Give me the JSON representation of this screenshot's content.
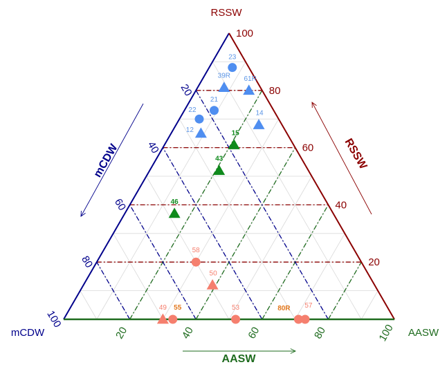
{
  "colors": {
    "rssw": "#8b0000",
    "mcdw": "#00008b",
    "aasw": "#1e6b1e",
    "blue_marker": "#4f8ef0",
    "blue_label": "#5b95e6",
    "green_marker": "#0f8a1c",
    "green_label": "#0f8a1c",
    "salmon_marker": "#f57f6e",
    "salmon_label": "#f57f6e",
    "salmon_label_bold": "#e2761b",
    "grid": "#d9d9d9"
  },
  "chart_data": {
    "type": "scatter",
    "subtype": "ternary",
    "corners": {
      "top": "RSSW",
      "left": "mCDW",
      "right": "AASW"
    },
    "axes": {
      "rssw": {
        "title": "RSSW",
        "ticks": [
          "20",
          "40",
          "60",
          "80",
          "100"
        ]
      },
      "mcdw": {
        "title": "mCDW",
        "ticks": [
          "20",
          "40",
          "60",
          "80",
          "100"
        ]
      },
      "aasw": {
        "title": "AASW",
        "ticks": [
          "20",
          "40",
          "60",
          "80",
          "100"
        ]
      }
    },
    "range": [
      0,
      100
    ],
    "grid": true,
    "reference_lines": {
      "rssw": [
        20,
        40,
        60,
        80
      ],
      "mcdw": [
        20,
        40,
        60,
        80
      ],
      "aasw": [
        20,
        40,
        60,
        80
      ]
    },
    "points": [
      {
        "label": "23",
        "shape": "circle",
        "group": "blue",
        "rssw": 88,
        "aasw": 7,
        "mcdw": 5
      },
      {
        "label": "39R",
        "shape": "triangle",
        "group": "blue",
        "rssw": 81,
        "aasw": 8,
        "mcdw": 11
      },
      {
        "label": "61R",
        "shape": "triangle",
        "group": "blue",
        "rssw": 80,
        "aasw": 16,
        "mcdw": 4
      },
      {
        "label": "21",
        "shape": "circle",
        "group": "blue",
        "rssw": 73,
        "aasw": 9,
        "mcdw": 18
      },
      {
        "label": "22",
        "shape": "circle",
        "group": "blue",
        "rssw": 70,
        "aasw": 6,
        "mcdw": 24
      },
      {
        "label": "14",
        "shape": "triangle",
        "group": "blue",
        "rssw": 68,
        "aasw": 25,
        "mcdw": 7
      },
      {
        "label": "12",
        "shape": "triangle",
        "group": "blue",
        "rssw": 65,
        "aasw": 9,
        "mcdw": 26
      },
      {
        "label": "15",
        "shape": "triangle",
        "group": "green",
        "rssw": 61,
        "aasw": 21,
        "mcdw": 18
      },
      {
        "label": "43",
        "shape": "triangle",
        "group": "green",
        "rssw": 52,
        "aasw": 21,
        "mcdw": 27
      },
      {
        "label": "46",
        "shape": "triangle",
        "group": "green",
        "rssw": 37,
        "aasw": 15,
        "mcdw": 48
      },
      {
        "label": "58",
        "shape": "circle",
        "group": "salmon",
        "rssw": 20,
        "aasw": 30,
        "mcdw": 50
      },
      {
        "label": "50",
        "shape": "triangle",
        "group": "salmon",
        "rssw": 12,
        "aasw": 39,
        "mcdw": 49
      },
      {
        "label": "49",
        "shape": "triangle",
        "group": "salmon",
        "rssw": 0,
        "aasw": 30,
        "mcdw": 70,
        "bold": false
      },
      {
        "label": "55",
        "shape": "circle",
        "group": "salmon",
        "rssw": 0,
        "aasw": 33,
        "mcdw": 67,
        "bold": true
      },
      {
        "label": "53",
        "shape": "circle",
        "group": "salmon",
        "rssw": 0,
        "aasw": 52,
        "mcdw": 48
      },
      {
        "label": "80R",
        "shape": "circle",
        "group": "salmon",
        "rssw": 0,
        "aasw": 71,
        "mcdw": 29,
        "bold": true
      },
      {
        "label": "57",
        "shape": "circle",
        "group": "salmon",
        "rssw": 0,
        "aasw": 73,
        "mcdw": 27
      }
    ]
  }
}
